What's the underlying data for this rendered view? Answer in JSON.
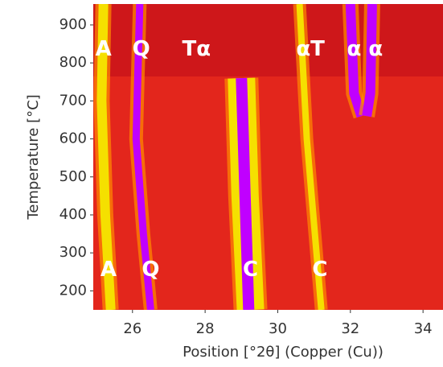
{
  "chart_data": {
    "type": "line",
    "xlabel": "Position [°2θ] (Copper (Cu))",
    "ylabel": "Temperature [°C]",
    "xlim": [
      24.92,
      34.55
    ],
    "xticks": [
      26,
      28,
      30,
      32,
      34
    ],
    "ylim": [
      150,
      955
    ],
    "yticks": [
      200,
      300,
      400,
      500,
      600,
      700,
      800,
      900
    ],
    "series": [
      {
        "color": "#f5e000",
        "x": [
          25.2,
          25.15,
          25.25,
          25.4
        ],
        "values": [
          955,
          700,
          400,
          150
        ]
      },
      {
        "color": "#c000ff",
        "x": [
          26.2,
          26.1,
          26.3,
          26.5
        ],
        "values": [
          955,
          600,
          350,
          150
        ]
      },
      {
        "color": "#f5e000",
        "x": [
          29.0,
          29.1,
          29.25
        ],
        "values": [
          760,
          450,
          150
        ]
      },
      {
        "color": "#c000ff",
        "x": [
          29.0,
          29.1,
          29.2
        ],
        "values": [
          760,
          450,
          150
        ]
      },
      {
        "color": "#f5e000",
        "x": [
          30.6,
          30.8,
          31.2
        ],
        "values": [
          955,
          600,
          150
        ]
      },
      {
        "color": "#c000ff",
        "x": [
          32.0,
          32.1,
          32.3
        ],
        "values": [
          955,
          720,
          660
        ]
      },
      {
        "color": "#c000ff",
        "x": [
          32.6,
          32.55,
          32.45
        ],
        "values": [
          955,
          720,
          660
        ]
      }
    ],
    "annotations": [
      {
        "text": "A",
        "x": 25.2,
        "y": 835
      },
      {
        "text": "Q",
        "x": 26.24,
        "y": 835
      },
      {
        "text": "Tα",
        "x": 27.76,
        "y": 835
      },
      {
        "text": "αT",
        "x": 30.9,
        "y": 835
      },
      {
        "text": "α α",
        "x": 32.4,
        "y": 835
      },
      {
        "text": "A",
        "x": 25.34,
        "y": 255
      },
      {
        "text": "Q",
        "x": 26.5,
        "y": 255
      },
      {
        "text": "C",
        "x": 29.25,
        "y": 255
      },
      {
        "text": "C",
        "x": 31.16,
        "y": 255
      }
    ]
  }
}
